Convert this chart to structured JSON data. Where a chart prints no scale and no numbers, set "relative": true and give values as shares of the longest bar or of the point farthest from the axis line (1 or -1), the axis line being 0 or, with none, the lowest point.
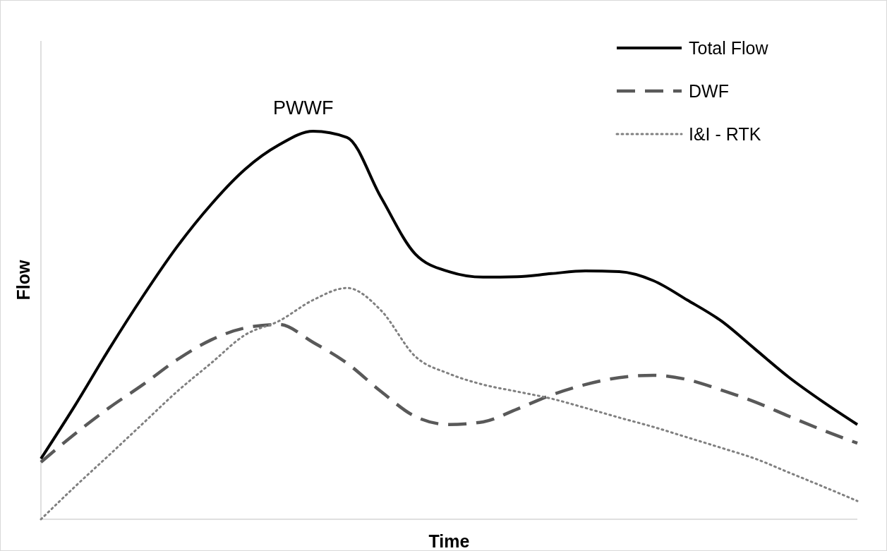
{
  "chart_data": {
    "type": "line",
    "relative": true,
    "xlabel": "Time",
    "ylabel": "Flow",
    "legend": "top right",
    "annotations": [
      {
        "text": "PWWF",
        "y": 1
      }
    ],
    "categories": [
      null,
      null,
      null,
      null,
      null,
      null,
      null,
      null,
      null,
      null,
      null,
      null,
      null,
      null,
      null,
      null,
      null,
      null,
      null,
      null,
      null,
      null,
      null,
      null,
      null
    ],
    "series": [
      {
        "name": "Total Flow",
        "color": "#000000",
        "line_style": "solid",
        "values": [
          0.156,
          0.293,
          0.438,
          0.575,
          0.702,
          0.811,
          0.902,
          0.965,
          1,
          0.984,
          0.829,
          0.684,
          0.638,
          0.624,
          0.625,
          0.633,
          0.64,
          0.638,
          0.615,
          0.565,
          0.511,
          0.438,
          0.365,
          0.302,
          0.244
        ]
      },
      {
        "name": "DWF",
        "color": "#595959",
        "line_style": "dashed",
        "values": [
          0.147,
          0.22,
          0.287,
          0.347,
          0.411,
          0.462,
          0.493,
          0.502,
          0.456,
          0.402,
          0.329,
          0.265,
          0.244,
          0.251,
          0.284,
          0.32,
          0.347,
          0.365,
          0.371,
          0.36,
          0.333,
          0.302,
          0.265,
          0.229,
          0.196
        ]
      },
      {
        "name": "I&I - RTK",
        "color": "#808080",
        "line_style": "dotted",
        "values": [
          0,
          0.084,
          0.165,
          0.247,
          0.329,
          0.402,
          0.475,
          0.511,
          0.565,
          0.596,
          0.538,
          0.42,
          0.375,
          0.347,
          0.329,
          0.311,
          0.287,
          0.262,
          0.238,
          0.211,
          0.184,
          0.156,
          0.12,
          0.084,
          0.047
        ]
      }
    ]
  }
}
